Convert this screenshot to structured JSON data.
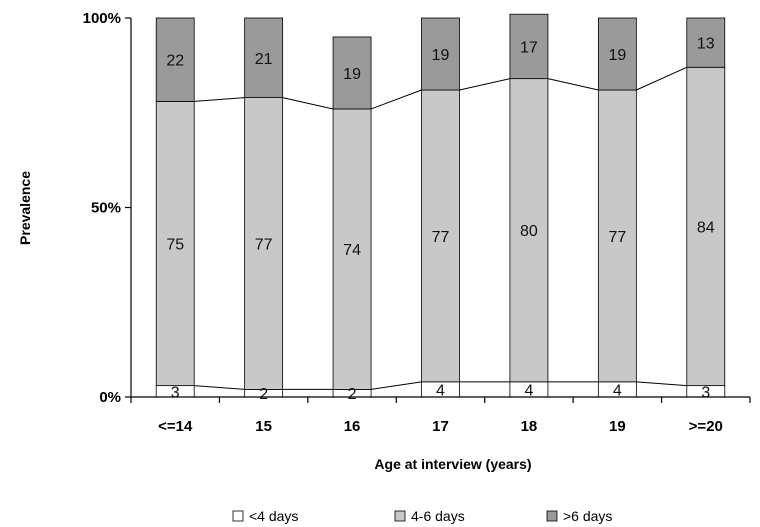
{
  "chart_data": {
    "type": "bar",
    "stacked": true,
    "percent_stacked": true,
    "categories": [
      "<=14",
      "15",
      "16",
      "17",
      "18",
      "19",
      ">=20"
    ],
    "series": [
      {
        "name": "<4 days",
        "values": [
          3,
          2,
          2,
          4,
          4,
          4,
          3
        ],
        "color": "#ffffff"
      },
      {
        "name": "4-6 days",
        "values": [
          75,
          77,
          74,
          77,
          80,
          77,
          84
        ],
        "color": "#c8c8c8"
      },
      {
        "name": ">6 days",
        "values": [
          22,
          21,
          19,
          19,
          17,
          19,
          13
        ],
        "color": "#9a9a9a"
      }
    ],
    "yticks": [
      "0%",
      "50%",
      "100%"
    ],
    "ylim": [
      0,
      100
    ],
    "xlabel": "Age at interview (years)",
    "ylabel": "Prevalence",
    "legend_position": "bottom",
    "series_lines": true,
    "grid": false
  }
}
